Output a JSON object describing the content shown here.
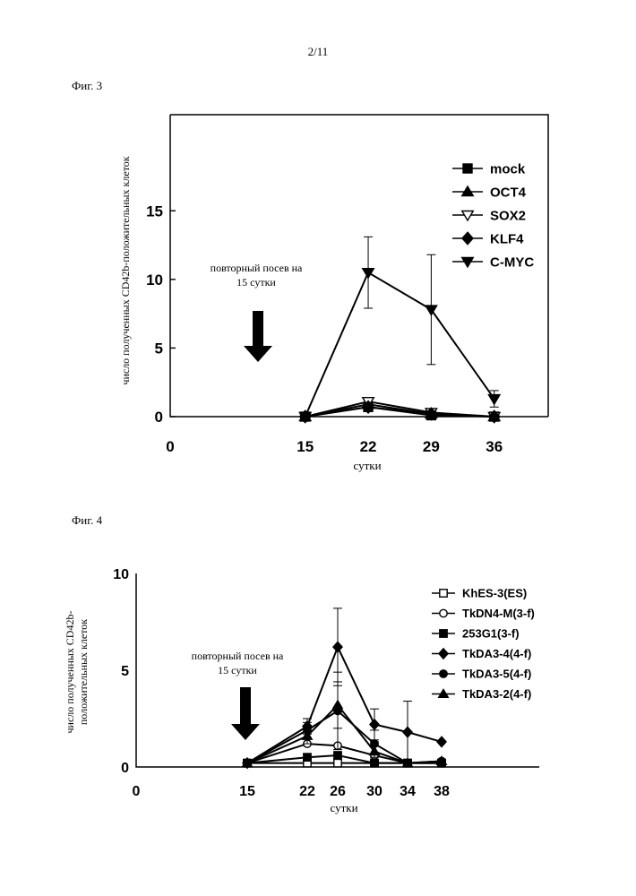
{
  "page_number": "2/11",
  "chart_data": [
    {
      "figure_label": "Фиг. 3",
      "type": "line",
      "title": "",
      "xlabel": "сутки",
      "ylabel": "число полученных CD42b-положительных клеток",
      "x": [
        15,
        22,
        29,
        36
      ],
      "x_ticks": [
        "0",
        "15",
        "22",
        "29",
        "36"
      ],
      "y_ticks": [
        "0",
        "5",
        "10",
        "15"
      ],
      "xlim": [
        0,
        42
      ],
      "ylim": [
        0,
        22
      ],
      "annotation": [
        "повторный посев на",
        "15 сутки"
      ],
      "legend_position": "top-right",
      "series": [
        {
          "name": "mock",
          "marker": "square",
          "values": [
            0.0,
            0.7,
            0.1,
            0.0
          ],
          "errors": [
            0,
            0,
            0,
            0
          ]
        },
        {
          "name": "OCT4",
          "marker": "triangle-up",
          "values": [
            0.0,
            0.9,
            0.2,
            0.0
          ],
          "errors": [
            0,
            0,
            0,
            0
          ]
        },
        {
          "name": "SOX2",
          "marker": "triangle-down-open",
          "values": [
            0.0,
            1.1,
            0.3,
            0.0
          ],
          "errors": [
            0,
            0,
            0,
            0
          ]
        },
        {
          "name": "KLF4",
          "marker": "diamond",
          "values": [
            0.0,
            0.7,
            0.2,
            0.0
          ],
          "errors": [
            0,
            0,
            0,
            0
          ]
        },
        {
          "name": "C-MYC",
          "marker": "triangle-down",
          "values": [
            0.0,
            10.5,
            7.8,
            1.3
          ],
          "errors": [
            0,
            2.6,
            4.0,
            0.6
          ]
        }
      ]
    },
    {
      "figure_label": "Фиг. 4",
      "type": "line",
      "title": "",
      "xlabel": "сутки",
      "ylabel": "число полученных CD42b-положительных клеток",
      "x": [
        15,
        22,
        26,
        30,
        34,
        38
      ],
      "x_ticks": [
        "0",
        "15",
        "22",
        "26",
        "30",
        "34",
        "38"
      ],
      "y_ticks": [
        "0",
        "5",
        "10"
      ],
      "ylim": [
        0,
        10
      ],
      "annotation": [
        "повторный посев на",
        "15 сутки"
      ],
      "legend_position": "top-right",
      "series": [
        {
          "name": "KhES-3(ES)",
          "marker": "square-open",
          "values": [
            0.2,
            0.2,
            0.2,
            0.2,
            0.2,
            0.2
          ],
          "errors": [
            0,
            0,
            0,
            0,
            0,
            0
          ]
        },
        {
          "name": "TkDN4-M(3-f)",
          "marker": "circle-open",
          "values": [
            0.2,
            1.2,
            1.1,
            0.6,
            0.2,
            0.3
          ],
          "errors": [
            0,
            0,
            0,
            0,
            0,
            0
          ]
        },
        {
          "name": "253G1(3-f)",
          "marker": "square",
          "values": [
            0.2,
            0.5,
            0.6,
            0.2,
            0.2,
            0.2
          ],
          "errors": [
            0,
            0,
            0,
            0,
            0,
            0
          ]
        },
        {
          "name": "TkDA3-4(4-f)",
          "marker": "diamond",
          "values": [
            0.2,
            2.1,
            6.2,
            2.2,
            1.8,
            1.3
          ],
          "errors": [
            0,
            0.4,
            2.0,
            0.8,
            1.6,
            0
          ]
        },
        {
          "name": "TkDA3-5(4-f)",
          "marker": "circle",
          "values": [
            0.2,
            1.9,
            2.9,
            1.2,
            0.2,
            0.2
          ],
          "errors": [
            0,
            0.4,
            2.0,
            0.7,
            0,
            0
          ]
        },
        {
          "name": "TkDA3-2(4-f)",
          "marker": "triangle-up",
          "values": [
            0.2,
            1.6,
            3.2,
            0.8,
            0.2,
            0.3
          ],
          "errors": [
            0,
            0.4,
            1.2,
            0.5,
            0,
            0
          ]
        }
      ]
    }
  ]
}
